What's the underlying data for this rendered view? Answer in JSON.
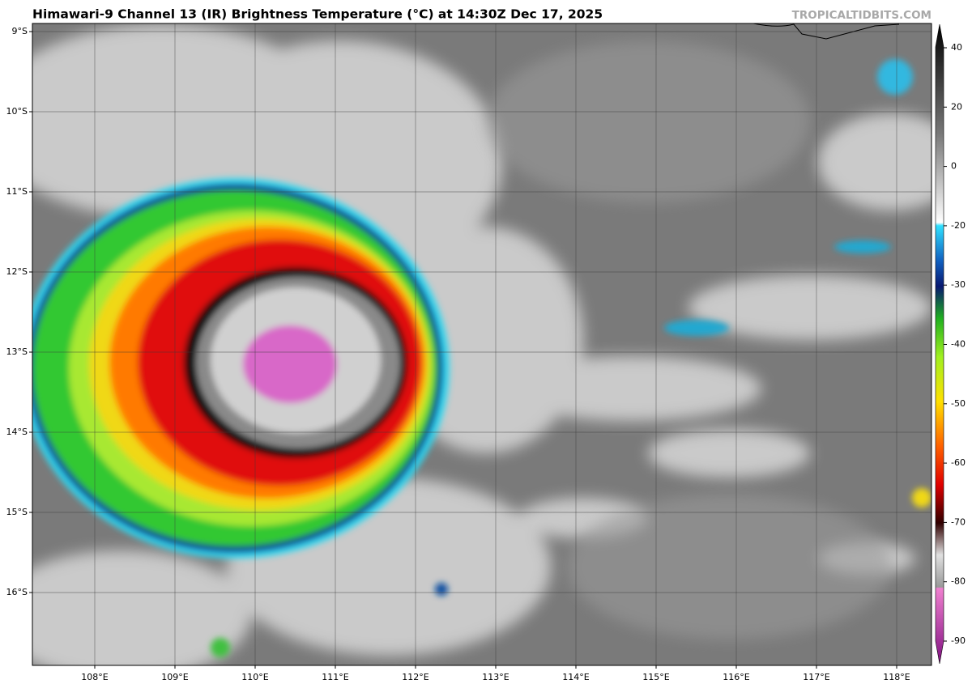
{
  "title": "Himawari-9 Channel 13 (IR) Brightness Temperature (°C) at 14:30Z Dec 17, 2025",
  "watermark": "TROPICALTIDBITS.COM",
  "latitude_labels": [
    "9°S",
    "10°S",
    "11°S",
    "12°S",
    "13°S",
    "14°S",
    "15°S",
    "16°S"
  ],
  "longitude_labels": [
    "108°E",
    "109°E",
    "110°E",
    "111°E",
    "112°E",
    "113°E",
    "114°E",
    "115°E",
    "116°E",
    "117°E",
    "118°E"
  ],
  "colorbar": {
    "ticks": [
      40,
      20,
      0,
      -20,
      -30,
      -40,
      -50,
      -60,
      -70,
      -80,
      -90
    ]
  }
}
